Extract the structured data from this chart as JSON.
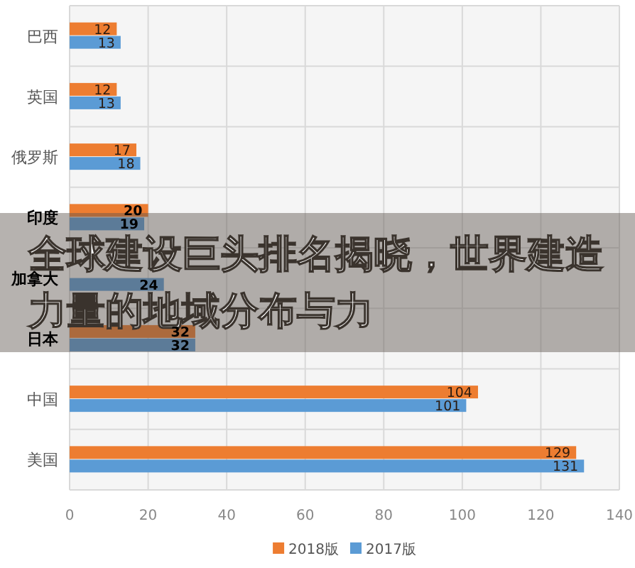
{
  "chart_data": {
    "type": "bar",
    "orientation": "horizontal",
    "title": "全球建设巨头排名揭晓，世界建造力量的地域分布与力",
    "categories": [
      "巴西",
      "英国",
      "俄罗斯",
      "印度",
      "加拿大",
      "日本",
      "中国",
      "美国"
    ],
    "series": [
      {
        "name": "2018版",
        "color": "#ed7d31",
        "values": [
          12,
          12,
          17,
          20,
          null,
          32,
          104,
          129
        ],
        "value_labels": [
          "12",
          "12",
          "17",
          "20",
          null,
          "32",
          "104",
          "129"
        ]
      },
      {
        "name": "2017版",
        "color": "#5b9bd5",
        "values": [
          13,
          13,
          18,
          19,
          24,
          32,
          101,
          131
        ],
        "value_labels": [
          "13",
          "13",
          "18",
          "19",
          "24",
          "32",
          "101",
          "131"
        ]
      }
    ],
    "xlim": [
      0,
      140
    ],
    "xticks": [
      0,
      20,
      40,
      60,
      80,
      100,
      120,
      140
    ],
    "grid": true,
    "legend": "bottom"
  }
}
